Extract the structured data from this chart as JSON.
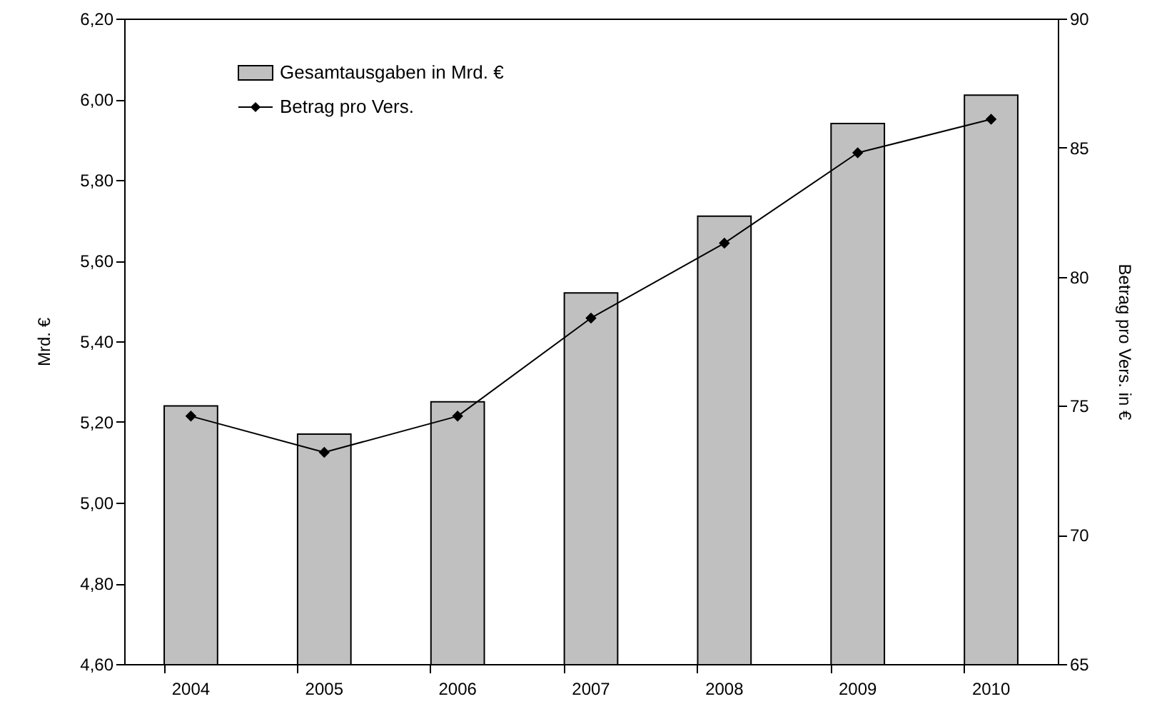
{
  "chart_data": {
    "type": "bar",
    "categories": [
      "2004",
      "2005",
      "2006",
      "2007",
      "2008",
      "2009",
      "2010"
    ],
    "series": [
      {
        "name": "Gesamtausgaben in Mrd. €",
        "color": "#c0c0c0",
        "values": [
          5.24,
          5.17,
          5.25,
          5.52,
          5.71,
          5.94,
          6.01
        ]
      },
      {
        "name": "Betrag pro Vers.",
        "type": "line",
        "axis": "y2",
        "color": "#000000",
        "marker": "diamond",
        "values": [
          74.6,
          73.2,
          74.6,
          78.4,
          81.3,
          84.8,
          86.1
        ]
      }
    ],
    "ylabel": "Mrd. €",
    "y2label": "Betrag pro Vers. in €",
    "ylim": [
      4.6,
      6.2
    ],
    "yticks": [
      {
        "value": 4.6,
        "label": "4,60"
      },
      {
        "value": 4.8,
        "label": "4,80"
      },
      {
        "value": 5.0,
        "label": "5,00"
      },
      {
        "value": 5.2,
        "label": "5,20"
      },
      {
        "value": 5.4,
        "label": "5,40"
      },
      {
        "value": 5.6,
        "label": "5,60"
      },
      {
        "value": 5.8,
        "label": "5,80"
      },
      {
        "value": 6.0,
        "label": "6,00"
      },
      {
        "value": 6.2,
        "label": "6,20"
      }
    ],
    "y2lim": [
      65,
      90
    ],
    "y2ticks": [
      65,
      70,
      75,
      80,
      85,
      90
    ],
    "grid": false,
    "legend": "top left",
    "line_style": "solid"
  }
}
